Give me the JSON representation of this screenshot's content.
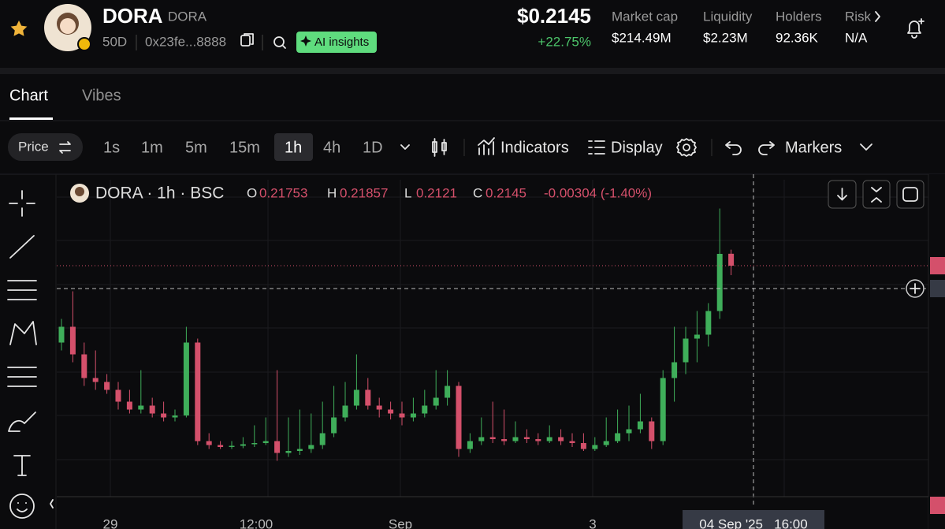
{
  "header": {
    "name": "DORA",
    "ticker": "DORA",
    "age": "50D",
    "address": "0x23fe...8888",
    "ai_button": "AI insights",
    "price": "$0.2145",
    "change": "+22.75%",
    "stats": [
      {
        "label": "Market cap",
        "value": "$214.49M"
      },
      {
        "label": "Liquidity",
        "value": "$2.23M"
      },
      {
        "label": "Holders",
        "value": "92.36K"
      },
      {
        "label": "Risk",
        "value": "N/A"
      }
    ]
  },
  "tabs": [
    "Chart",
    "Vibes"
  ],
  "toolbar": {
    "price_button": "Price",
    "intervals": [
      "1s",
      "1m",
      "5m",
      "15m",
      "1h",
      "4h",
      "1D"
    ],
    "active_interval": "1h",
    "indicators": "Indicators",
    "display": "Display",
    "markers": "Markers"
  },
  "chart_data": {
    "type": "candlestick",
    "symbol": "DORA · 1h · BSC",
    "ohlc_labels": [
      "O",
      "H",
      "L",
      "C"
    ],
    "change_label": "-0.00304 (-1.40%)",
    "up_color": "#3fae5a",
    "down_color": "#d4506b",
    "open": [
      0.195,
      0.199,
      0.192,
      0.186,
      0.185,
      0.183,
      0.18,
      0.178,
      0.179,
      0.177,
      0.176,
      0.1765,
      0.195,
      0.17,
      0.169,
      0.1685,
      0.1688,
      0.1692,
      0.1695,
      0.17,
      0.167,
      0.1675,
      0.168,
      0.169,
      0.172,
      0.176,
      0.179,
      0.183,
      0.179,
      0.178,
      0.177,
      0.176,
      0.177,
      0.179,
      0.181,
      0.184,
      0.168,
      0.17,
      0.171,
      0.1705,
      0.17,
      0.171,
      0.1705,
      0.17,
      0.171,
      0.17,
      0.1695,
      0.168,
      0.169,
      0.17,
      0.172,
      0.173,
      0.175,
      0.17,
      0.186,
      0.19,
      0.196,
      0.197,
      0.203,
      0.21753
    ],
    "high": [
      0.201,
      0.208,
      0.195,
      0.193,
      0.187,
      0.185,
      0.183,
      0.188,
      0.181,
      0.18,
      0.178,
      0.199,
      0.196,
      0.172,
      0.17,
      0.17,
      0.171,
      0.174,
      0.176,
      0.188,
      0.176,
      0.178,
      0.177,
      0.18,
      0.184,
      0.185,
      0.192,
      0.186,
      0.181,
      0.18,
      0.18,
      0.181,
      0.183,
      0.188,
      0.188,
      0.185,
      0.172,
      0.176,
      0.18,
      0.178,
      0.175,
      0.173,
      0.172,
      0.174,
      0.173,
      0.172,
      0.172,
      0.171,
      0.176,
      0.178,
      0.179,
      0.182,
      0.176,
      0.188,
      0.199,
      0.199,
      0.203,
      0.205,
      0.229,
      0.21857
    ],
    "low": [
      0.193,
      0.19,
      0.184,
      0.183,
      0.182,
      0.178,
      0.177,
      0.177,
      0.176,
      0.175,
      0.175,
      0.176,
      0.169,
      0.168,
      0.168,
      0.168,
      0.1682,
      0.1685,
      0.169,
      0.165,
      0.166,
      0.1665,
      0.167,
      0.168,
      0.171,
      0.175,
      0.178,
      0.178,
      0.176,
      0.1755,
      0.174,
      0.175,
      0.176,
      0.178,
      0.179,
      0.166,
      0.167,
      0.169,
      0.1695,
      0.169,
      0.1695,
      0.1695,
      0.169,
      0.1695,
      0.169,
      0.1685,
      0.1675,
      0.1675,
      0.1685,
      0.1695,
      0.17,
      0.172,
      0.168,
      0.169,
      0.18,
      0.187,
      0.19,
      0.194,
      0.201,
      0.2121
    ],
    "close": [
      0.199,
      0.192,
      0.186,
      0.185,
      0.183,
      0.18,
      0.178,
      0.179,
      0.177,
      0.176,
      0.1765,
      0.195,
      0.17,
      0.169,
      0.1685,
      0.1688,
      0.1692,
      0.1695,
      0.17,
      0.167,
      0.1675,
      0.168,
      0.169,
      0.172,
      0.176,
      0.179,
      0.183,
      0.179,
      0.178,
      0.177,
      0.176,
      0.177,
      0.179,
      0.181,
      0.184,
      0.168,
      0.17,
      0.171,
      0.1705,
      0.17,
      0.171,
      0.1705,
      0.17,
      0.171,
      0.17,
      0.1695,
      0.168,
      0.169,
      0.17,
      0.172,
      0.173,
      0.175,
      0.17,
      0.186,
      0.19,
      0.196,
      0.197,
      0.203,
      0.2175,
      0.2145
    ],
    "ylim": [
      0.1563,
      0.2363
    ],
    "x_tick_labels": [
      "29",
      "12:00",
      "Sep",
      "3"
    ],
    "crosshair_label": "04 Sep '25   16:00"
  }
}
